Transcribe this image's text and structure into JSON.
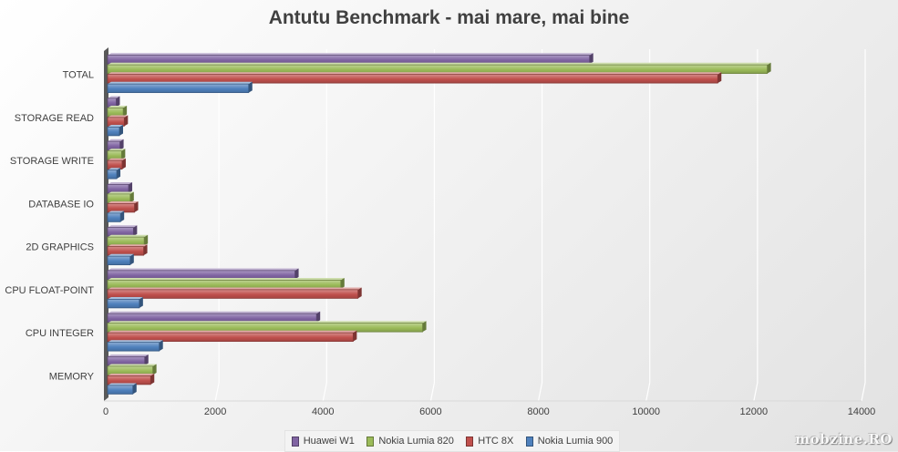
{
  "chart_data": {
    "type": "bar",
    "orientation": "horizontal",
    "title": "Antutu Benchmark - mai mare, mai bine",
    "categories": [
      "TOTAL",
      "STORAGE READ",
      "STORAGE WRITE",
      "DATABASE IO",
      "2D GRAPHICS",
      "CPU FLOAT-POINT",
      "CPU INTEGER",
      "MEMORY"
    ],
    "series": [
      {
        "name": "Huawei W1",
        "color": "#8064a2",
        "values": [
          8950,
          160,
          230,
          390,
          480,
          3480,
          3880,
          690
        ]
      },
      {
        "name": "Nokia Lumia 820",
        "color": "#9bbb59",
        "values": [
          12250,
          290,
          260,
          420,
          680,
          4330,
          5850,
          840
        ]
      },
      {
        "name": "HTC 8X",
        "color": "#c0504d",
        "values": [
          11330,
          310,
          270,
          500,
          670,
          4650,
          4560,
          800
        ]
      },
      {
        "name": "Nokia Lumia 900",
        "color": "#4f81bd",
        "values": [
          2620,
          220,
          170,
          240,
          420,
          590,
          960,
          470
        ]
      }
    ],
    "xlim": [
      0,
      14000
    ],
    "xticks": [
      "0",
      "2000",
      "4000",
      "6000",
      "8000",
      "10000",
      "12000",
      "14000"
    ],
    "grid": true,
    "legend_position": "bottom"
  },
  "watermark": "mobzine.RO"
}
